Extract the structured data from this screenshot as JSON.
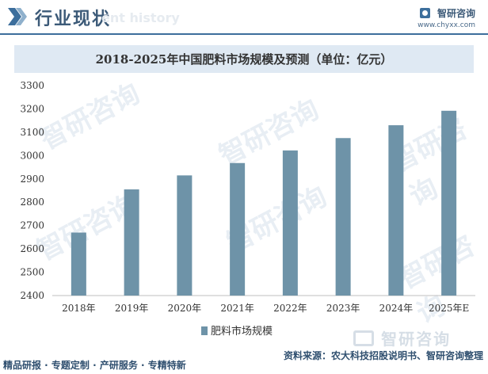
{
  "header": {
    "title": "行业现状",
    "ghost_text": "ent history",
    "brand_name": "智研咨询",
    "brand_url": "www.chyxx.com"
  },
  "watermark_text": "智研咨询",
  "footer": {
    "left_text": "精品研报 · 专题定制 · 产研服务 · 专精特新",
    "source_text": "资料来源：农大科技招股说明书、智研咨询整理",
    "logo_text": "智研咨询"
  },
  "colors": {
    "bar": "#6e93a8",
    "header_line": "#3c6e9c",
    "title_band": "#dfe9f3"
  },
  "chart_data": {
    "type": "bar",
    "title": "2018-2025年中国肥料市场规模及预测（单位：亿元）",
    "categories": [
      "2018年",
      "2019年",
      "2020年",
      "2021年",
      "2022年",
      "2023年",
      "2024年",
      "2025年E"
    ],
    "series": [
      {
        "name": "肥料市场规模",
        "values": [
          2670,
          2855,
          2915,
          2968,
          3022,
          3075,
          3130,
          3192
        ]
      }
    ],
    "ylim": [
      2400,
      3300
    ],
    "yticks": [
      2400,
      2500,
      2600,
      2700,
      2800,
      2900,
      3000,
      3100,
      3200,
      3300
    ],
    "grid": false,
    "legend": "bottom"
  }
}
